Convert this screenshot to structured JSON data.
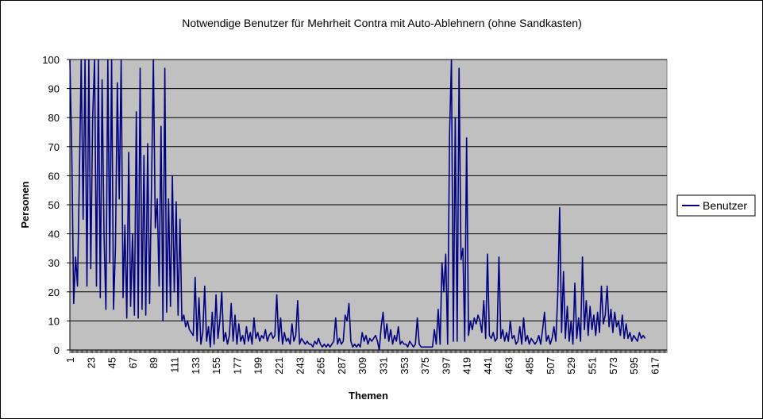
{
  "chart_data": {
    "type": "line",
    "title": "Notwendige Benutzer für Mehrheit Contra mit Auto-Ablehnern (ohne Sandkasten)",
    "xlabel": "Themen",
    "ylabel": "Personen",
    "ylim": [
      0,
      100
    ],
    "yticks": [
      0,
      10,
      20,
      30,
      40,
      50,
      60,
      70,
      80,
      90,
      100
    ],
    "xlim": [
      1,
      630
    ],
    "xticks": [
      1,
      23,
      45,
      67,
      89,
      111,
      133,
      155,
      177,
      199,
      221,
      243,
      265,
      287,
      309,
      331,
      353,
      375,
      397,
      419,
      441,
      463,
      485,
      507,
      529,
      551,
      573,
      595,
      617
    ],
    "grid": "horizontal",
    "legend_position": "right",
    "colors": {
      "line": "#000080",
      "plot_bg": "#c0c0c0",
      "grid": "#000000"
    },
    "series": [
      {
        "name": "Benutzer",
        "points": [
          [
            1,
            100
          ],
          [
            3,
            68
          ],
          [
            5,
            16
          ],
          [
            7,
            32
          ],
          [
            9,
            22
          ],
          [
            11,
            60
          ],
          [
            13,
            100
          ],
          [
            15,
            45
          ],
          [
            17,
            100
          ],
          [
            19,
            22
          ],
          [
            21,
            100
          ],
          [
            23,
            28
          ],
          [
            25,
            80
          ],
          [
            27,
            100
          ],
          [
            29,
            22
          ],
          [
            31,
            100
          ],
          [
            33,
            18
          ],
          [
            35,
            93
          ],
          [
            37,
            40
          ],
          [
            39,
            14
          ],
          [
            41,
            100
          ],
          [
            43,
            30
          ],
          [
            45,
            100
          ],
          [
            47,
            14
          ],
          [
            49,
            35
          ],
          [
            51,
            92
          ],
          [
            53,
            52
          ],
          [
            55,
            100
          ],
          [
            57,
            18
          ],
          [
            59,
            43
          ],
          [
            61,
            11
          ],
          [
            63,
            68
          ],
          [
            65,
            15
          ],
          [
            67,
            40
          ],
          [
            69,
            12
          ],
          [
            71,
            82
          ],
          [
            73,
            11
          ],
          [
            75,
            97
          ],
          [
            77,
            14
          ],
          [
            79,
            67
          ],
          [
            81,
            12
          ],
          [
            83,
            71
          ],
          [
            85,
            16
          ],
          [
            87,
            56
          ],
          [
            89,
            100
          ],
          [
            91,
            42
          ],
          [
            93,
            52
          ],
          [
            95,
            22
          ],
          [
            97,
            77
          ],
          [
            99,
            10
          ],
          [
            101,
            97
          ],
          [
            103,
            13
          ],
          [
            105,
            52
          ],
          [
            107,
            15
          ],
          [
            109,
            60
          ],
          [
            111,
            20
          ],
          [
            113,
            51
          ],
          [
            115,
            12
          ],
          [
            117,
            45
          ],
          [
            119,
            10
          ],
          [
            121,
            12
          ],
          [
            123,
            8
          ],
          [
            125,
            10
          ],
          [
            127,
            7
          ],
          [
            129,
            6
          ],
          [
            131,
            5
          ],
          [
            133,
            25
          ],
          [
            135,
            3
          ],
          [
            137,
            18
          ],
          [
            139,
            2
          ],
          [
            141,
            6
          ],
          [
            143,
            22
          ],
          [
            145,
            3
          ],
          [
            147,
            8
          ],
          [
            149,
            1
          ],
          [
            151,
            13
          ],
          [
            153,
            2
          ],
          [
            155,
            19
          ],
          [
            157,
            4
          ],
          [
            159,
            10
          ],
          [
            161,
            20
          ],
          [
            163,
            3
          ],
          [
            165,
            6
          ],
          [
            167,
            2
          ],
          [
            169,
            5
          ],
          [
            171,
            16
          ],
          [
            173,
            3
          ],
          [
            175,
            12
          ],
          [
            177,
            2
          ],
          [
            179,
            9
          ],
          [
            181,
            3
          ],
          [
            183,
            5
          ],
          [
            185,
            2
          ],
          [
            187,
            8
          ],
          [
            189,
            3
          ],
          [
            191,
            6
          ],
          [
            193,
            2
          ],
          [
            195,
            11
          ],
          [
            197,
            4
          ],
          [
            199,
            6
          ],
          [
            201,
            3
          ],
          [
            203,
            5
          ],
          [
            205,
            4
          ],
          [
            207,
            7
          ],
          [
            209,
            3
          ],
          [
            211,
            5
          ],
          [
            213,
            6
          ],
          [
            215,
            4
          ],
          [
            217,
            5
          ],
          [
            219,
            19
          ],
          [
            221,
            3
          ],
          [
            223,
            11
          ],
          [
            225,
            2
          ],
          [
            227,
            6
          ],
          [
            229,
            3
          ],
          [
            231,
            4
          ],
          [
            233,
            2
          ],
          [
            235,
            9
          ],
          [
            237,
            3
          ],
          [
            239,
            5
          ],
          [
            241,
            17
          ],
          [
            243,
            2
          ],
          [
            245,
            4
          ],
          [
            247,
            3
          ],
          [
            249,
            2
          ],
          [
            251,
            3
          ],
          [
            253,
            2
          ],
          [
            255,
            2
          ],
          [
            257,
            1
          ],
          [
            259,
            3
          ],
          [
            261,
            2
          ],
          [
            263,
            4
          ],
          [
            265,
            2
          ],
          [
            267,
            1
          ],
          [
            269,
            2
          ],
          [
            271,
            1
          ],
          [
            273,
            2
          ],
          [
            275,
            1
          ],
          [
            277,
            2
          ],
          [
            279,
            3
          ],
          [
            281,
            11
          ],
          [
            283,
            2
          ],
          [
            285,
            4
          ],
          [
            287,
            2
          ],
          [
            289,
            3
          ],
          [
            291,
            12
          ],
          [
            293,
            10
          ],
          [
            295,
            16
          ],
          [
            297,
            3
          ],
          [
            299,
            1
          ],
          [
            301,
            2
          ],
          [
            303,
            1
          ],
          [
            305,
            2
          ],
          [
            307,
            1
          ],
          [
            309,
            6
          ],
          [
            311,
            3
          ],
          [
            313,
            5
          ],
          [
            315,
            2
          ],
          [
            317,
            4
          ],
          [
            319,
            3
          ],
          [
            321,
            4
          ],
          [
            323,
            5
          ],
          [
            325,
            3
          ],
          [
            327,
            0
          ],
          [
            329,
            8
          ],
          [
            331,
            13
          ],
          [
            333,
            4
          ],
          [
            335,
            9
          ],
          [
            337,
            3
          ],
          [
            339,
            7
          ],
          [
            341,
            2
          ],
          [
            343,
            5
          ],
          [
            345,
            3
          ],
          [
            347,
            8
          ],
          [
            349,
            2
          ],
          [
            351,
            3
          ],
          [
            353,
            2
          ],
          [
            355,
            2
          ],
          [
            357,
            1
          ],
          [
            359,
            3
          ],
          [
            361,
            2
          ],
          [
            363,
            1
          ],
          [
            365,
            2
          ],
          [
            367,
            11
          ],
          [
            369,
            2
          ],
          [
            371,
            1
          ],
          [
            373,
            1
          ],
          [
            375,
            1
          ],
          [
            377,
            1
          ],
          [
            379,
            1
          ],
          [
            381,
            1
          ],
          [
            383,
            1
          ],
          [
            385,
            7
          ],
          [
            387,
            2
          ],
          [
            389,
            14
          ],
          [
            391,
            2
          ],
          [
            393,
            30
          ],
          [
            395,
            20
          ],
          [
            397,
            33
          ],
          [
            399,
            2
          ],
          [
            401,
            74
          ],
          [
            403,
            100
          ],
          [
            405,
            3
          ],
          [
            407,
            80
          ],
          [
            409,
            3
          ],
          [
            411,
            97
          ],
          [
            413,
            31
          ],
          [
            415,
            35
          ],
          [
            417,
            3
          ],
          [
            419,
            73
          ],
          [
            421,
            5
          ],
          [
            423,
            10
          ],
          [
            425,
            7
          ],
          [
            427,
            11
          ],
          [
            429,
            9
          ],
          [
            431,
            12
          ],
          [
            433,
            10
          ],
          [
            435,
            6
          ],
          [
            437,
            17
          ],
          [
            439,
            4
          ],
          [
            441,
            33
          ],
          [
            443,
            5
          ],
          [
            445,
            4
          ],
          [
            447,
            6
          ],
          [
            449,
            3
          ],
          [
            451,
            4
          ],
          [
            453,
            32
          ],
          [
            455,
            4
          ],
          [
            457,
            7
          ],
          [
            459,
            3
          ],
          [
            461,
            6
          ],
          [
            463,
            3
          ],
          [
            465,
            10
          ],
          [
            467,
            4
          ],
          [
            469,
            5
          ],
          [
            471,
            2
          ],
          [
            473,
            3
          ],
          [
            475,
            8
          ],
          [
            477,
            2
          ],
          [
            479,
            11
          ],
          [
            481,
            3
          ],
          [
            483,
            5
          ],
          [
            485,
            2
          ],
          [
            487,
            4
          ],
          [
            489,
            3
          ],
          [
            491,
            2
          ],
          [
            493,
            3
          ],
          [
            495,
            5
          ],
          [
            497,
            2
          ],
          [
            499,
            7
          ],
          [
            501,
            13
          ],
          [
            503,
            3
          ],
          [
            505,
            5
          ],
          [
            507,
            2
          ],
          [
            509,
            4
          ],
          [
            511,
            8
          ],
          [
            513,
            3
          ],
          [
            515,
            19
          ],
          [
            517,
            49
          ],
          [
            519,
            6
          ],
          [
            521,
            27
          ],
          [
            523,
            4
          ],
          [
            525,
            15
          ],
          [
            527,
            3
          ],
          [
            529,
            10
          ],
          [
            531,
            2
          ],
          [
            533,
            23
          ],
          [
            535,
            4
          ],
          [
            537,
            11
          ],
          [
            539,
            3
          ],
          [
            541,
            32
          ],
          [
            543,
            7
          ],
          [
            545,
            17
          ],
          [
            547,
            5
          ],
          [
            549,
            15
          ],
          [
            551,
            7
          ],
          [
            553,
            12
          ],
          [
            555,
            5
          ],
          [
            557,
            13
          ],
          [
            559,
            6
          ],
          [
            561,
            22
          ],
          [
            563,
            9
          ],
          [
            565,
            12
          ],
          [
            567,
            22
          ],
          [
            569,
            8
          ],
          [
            571,
            14
          ],
          [
            573,
            6
          ],
          [
            575,
            13
          ],
          [
            577,
            8
          ],
          [
            579,
            10
          ],
          [
            581,
            5
          ],
          [
            583,
            12
          ],
          [
            585,
            4
          ],
          [
            587,
            9
          ],
          [
            589,
            4
          ],
          [
            591,
            6
          ],
          [
            593,
            3
          ],
          [
            595,
            5
          ],
          [
            597,
            4
          ],
          [
            599,
            3
          ],
          [
            601,
            6
          ],
          [
            603,
            4
          ],
          [
            605,
            5
          ],
          [
            607,
            4
          ]
        ]
      }
    ]
  }
}
